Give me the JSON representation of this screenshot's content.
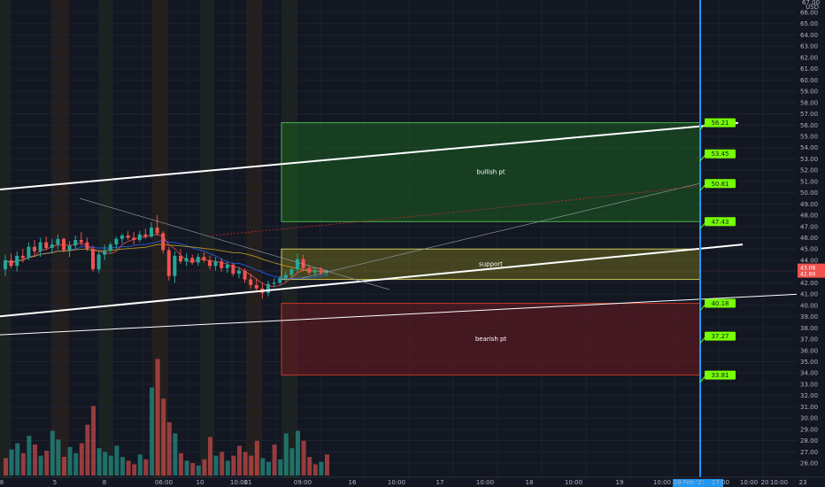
{
  "chart_data": {
    "type": "candlestick",
    "currency": "USD",
    "y_axis": {
      "min": 26,
      "max": 66,
      "ticks": [
        26,
        27,
        28,
        29,
        30,
        31,
        32,
        33,
        34,
        35,
        36,
        37,
        38,
        39,
        40,
        41,
        42,
        43,
        44,
        45,
        46,
        47,
        48,
        49,
        50,
        51,
        52,
        53,
        54,
        55,
        56,
        57,
        58,
        59,
        60,
        61,
        62,
        63,
        64,
        65,
        66
      ],
      "labels": [
        "26.00",
        "27.00",
        "28.00",
        "29.00",
        "30.00",
        "31.00",
        "32.00",
        "33.00",
        "34.00",
        "35.00",
        "36.00",
        "37.00",
        "38.00",
        "39.00",
        "40.00",
        "41.00",
        "42.00",
        "43.00",
        "44.00",
        "45.00",
        "46.00",
        "47.00",
        "48.00",
        "49.00",
        "50.00",
        "51.00",
        "52.00",
        "53.00",
        "54.00",
        "55.00",
        "56.00",
        "57.00",
        "58.00",
        "59.00",
        "60.00",
        "61.00",
        "62.00",
        "63.00",
        "64.00",
        "65.00",
        "66.00"
      ],
      "top_label": "67.00"
    },
    "x_axis": {
      "labels": [
        "8",
        "5",
        "8",
        "06:00",
        "10",
        "10:00",
        "11",
        "09:00",
        "16",
        "10:00",
        "17",
        "10:00",
        "18",
        "10:00",
        "19",
        "10:00",
        "19 Feb '21",
        "17:00",
        "10:00",
        "20",
        "10:00",
        "23"
      ]
    },
    "last_price": {
      "label": "43.08",
      "sub": "42.89",
      "value": 43.08,
      "color": "#ef5350"
    },
    "zones": [
      {
        "label": "bullish pt",
        "low": 47.43,
        "high": 56.21,
        "fill": "#1b5e20",
        "border": "#4caf50"
      },
      {
        "label": "support",
        "low": 42.3,
        "high": 45.0,
        "fill": "#6b6a1e",
        "border": "#c9c458"
      },
      {
        "label": "bearish pt",
        "low": 33.81,
        "high": 40.18,
        "fill": "#6b1a1f",
        "border": "#c0392b"
      }
    ],
    "price_tags": [
      {
        "label": "56.21",
        "value": 56.21
      },
      {
        "label": "53.45",
        "value": 53.45
      },
      {
        "label": "50.81",
        "value": 50.81
      },
      {
        "label": "47.43",
        "value": 47.43
      },
      {
        "label": "40.18",
        "value": 40.18
      },
      {
        "label": "37.27",
        "value": 37.27
      },
      {
        "label": "33.81",
        "value": 33.81
      }
    ],
    "trendlines": [
      {
        "color": "#ffffff",
        "from": [
          -2,
          49.6
        ],
        "to": [
          16.6,
          56.2
        ]
      },
      {
        "color": "#ffffff",
        "from": [
          -2,
          38.3
        ],
        "to": [
          16.7,
          45.4
        ]
      },
      {
        "color": "#ffffff",
        "from": [
          -2,
          37.0
        ],
        "to": [
          19.0,
          41.2
        ]
      }
    ],
    "candles": [
      [
        43.2,
        44.5,
        42.6,
        44.0
      ],
      [
        44.0,
        44.6,
        43.3,
        43.5
      ],
      [
        43.5,
        44.8,
        43.0,
        44.4
      ],
      [
        44.4,
        45.0,
        43.8,
        44.2
      ],
      [
        44.2,
        45.6,
        44.0,
        45.2
      ],
      [
        45.2,
        45.8,
        44.5,
        44.8
      ],
      [
        44.8,
        46.0,
        44.3,
        45.6
      ],
      [
        45.6,
        46.1,
        44.9,
        45.1
      ],
      [
        45.1,
        45.9,
        44.6,
        45.4
      ],
      [
        45.4,
        46.3,
        45.0,
        45.9
      ],
      [
        45.9,
        46.0,
        44.7,
        44.9
      ],
      [
        44.9,
        45.7,
        44.3,
        45.3
      ],
      [
        45.3,
        46.2,
        45.0,
        45.8
      ],
      [
        45.8,
        46.5,
        45.3,
        45.6
      ],
      [
        45.6,
        46.0,
        44.8,
        45.0
      ],
      [
        45.0,
        45.3,
        43.0,
        43.2
      ],
      [
        43.2,
        44.8,
        42.9,
        44.5
      ],
      [
        44.5,
        45.4,
        44.0,
        44.9
      ],
      [
        44.9,
        45.6,
        44.6,
        45.4
      ],
      [
        45.4,
        46.1,
        45.0,
        45.9
      ],
      [
        45.9,
        46.4,
        45.5,
        46.2
      ],
      [
        46.2,
        46.6,
        45.8,
        46.0
      ],
      [
        46.0,
        46.5,
        45.4,
        45.8
      ],
      [
        45.8,
        46.6,
        45.6,
        46.3
      ],
      [
        46.3,
        46.8,
        45.9,
        46.1
      ],
      [
        46.1,
        47.4,
        46.0,
        46.9
      ],
      [
        46.9,
        48.0,
        46.2,
        46.4
      ],
      [
        46.4,
        46.6,
        44.6,
        44.9
      ],
      [
        44.9,
        45.2,
        42.2,
        42.6
      ],
      [
        42.6,
        44.8,
        42.0,
        44.4
      ],
      [
        44.4,
        45.0,
        43.7,
        43.9
      ],
      [
        43.9,
        44.6,
        43.5,
        44.2
      ],
      [
        44.2,
        44.5,
        43.6,
        43.8
      ],
      [
        43.8,
        44.6,
        43.5,
        44.3
      ],
      [
        44.3,
        44.7,
        43.8,
        44.0
      ],
      [
        44.0,
        44.4,
        43.2,
        43.5
      ],
      [
        43.5,
        44.3,
        43.1,
        43.9
      ],
      [
        43.9,
        44.2,
        43.0,
        43.3
      ],
      [
        43.3,
        43.9,
        42.9,
        43.6
      ],
      [
        43.6,
        43.8,
        42.6,
        42.8
      ],
      [
        42.8,
        43.4,
        42.4,
        43.1
      ],
      [
        43.1,
        43.3,
        42.0,
        42.3
      ],
      [
        42.3,
        42.8,
        41.5,
        41.8
      ],
      [
        41.8,
        42.4,
        41.2,
        41.5
      ],
      [
        41.5,
        42.0,
        40.6,
        41.1
      ],
      [
        41.1,
        42.2,
        40.8,
        41.9
      ],
      [
        41.9,
        42.4,
        41.6,
        42.0
      ],
      [
        42.0,
        42.6,
        41.8,
        42.4
      ],
      [
        42.4,
        43.0,
        42.1,
        42.7
      ],
      [
        42.7,
        43.4,
        42.4,
        43.2
      ],
      [
        43.2,
        44.6,
        42.9,
        44.1
      ],
      [
        44.1,
        44.5,
        43.0,
        43.3
      ],
      [
        43.3,
        43.6,
        42.7,
        42.9
      ],
      [
        42.9,
        43.3,
        42.6,
        43.1
      ],
      [
        43.1,
        43.4,
        42.7,
        42.9
      ],
      [
        42.9,
        43.2,
        42.6,
        43.08
      ]
    ],
    "volumes": [
      {
        "v": 1.4,
        "up": false
      },
      {
        "v": 2.1,
        "up": true
      },
      {
        "v": 2.6,
        "up": true
      },
      {
        "v": 1.8,
        "up": false
      },
      {
        "v": 3.2,
        "up": true
      },
      {
        "v": 2.5,
        "up": false
      },
      {
        "v": 1.6,
        "up": true
      },
      {
        "v": 2.0,
        "up": false
      },
      {
        "v": 3.6,
        "up": true
      },
      {
        "v": 2.9,
        "up": true
      },
      {
        "v": 1.5,
        "up": false
      },
      {
        "v": 2.3,
        "up": true
      },
      {
        "v": 1.8,
        "up": true
      },
      {
        "v": 2.6,
        "up": false
      },
      {
        "v": 4.1,
        "up": false
      },
      {
        "v": 5.6,
        "up": false
      },
      {
        "v": 2.2,
        "up": true
      },
      {
        "v": 1.9,
        "up": true
      },
      {
        "v": 1.6,
        "up": true
      },
      {
        "v": 2.4,
        "up": true
      },
      {
        "v": 1.5,
        "up": true
      },
      {
        "v": 1.2,
        "up": false
      },
      {
        "v": 0.9,
        "up": false
      },
      {
        "v": 1.7,
        "up": true
      },
      {
        "v": 1.3,
        "up": false
      },
      {
        "v": 7.1,
        "up": true
      },
      {
        "v": 9.4,
        "up": false
      },
      {
        "v": 6.2,
        "up": false
      },
      {
        "v": 4.3,
        "up": false
      },
      {
        "v": 3.4,
        "up": true
      },
      {
        "v": 1.8,
        "up": false
      },
      {
        "v": 1.2,
        "up": true
      },
      {
        "v": 1.0,
        "up": false
      },
      {
        "v": 0.8,
        "up": true
      },
      {
        "v": 1.3,
        "up": false
      },
      {
        "v": 3.1,
        "up": false
      },
      {
        "v": 1.6,
        "up": true
      },
      {
        "v": 1.9,
        "up": false
      },
      {
        "v": 1.2,
        "up": true
      },
      {
        "v": 1.6,
        "up": false
      },
      {
        "v": 2.4,
        "up": false
      },
      {
        "v": 1.9,
        "up": false
      },
      {
        "v": 1.6,
        "up": false
      },
      {
        "v": 2.8,
        "up": false
      },
      {
        "v": 1.4,
        "up": true
      },
      {
        "v": 1.1,
        "up": true
      },
      {
        "v": 2.5,
        "up": false
      },
      {
        "v": 1.3,
        "up": true
      },
      {
        "v": 3.4,
        "up": true
      },
      {
        "v": 2.2,
        "up": true
      },
      {
        "v": 3.6,
        "up": true
      },
      {
        "v": 2.8,
        "up": false
      },
      {
        "v": 1.5,
        "up": false
      },
      {
        "v": 0.9,
        "up": false
      },
      {
        "v": 1.1,
        "up": true
      },
      {
        "v": 1.7,
        "up": false
      }
    ],
    "colors": {
      "up": "#26a69a",
      "down": "#ef5350",
      "marker": "#2196f3",
      "tag": "#76ff03",
      "background": "#131722"
    }
  }
}
